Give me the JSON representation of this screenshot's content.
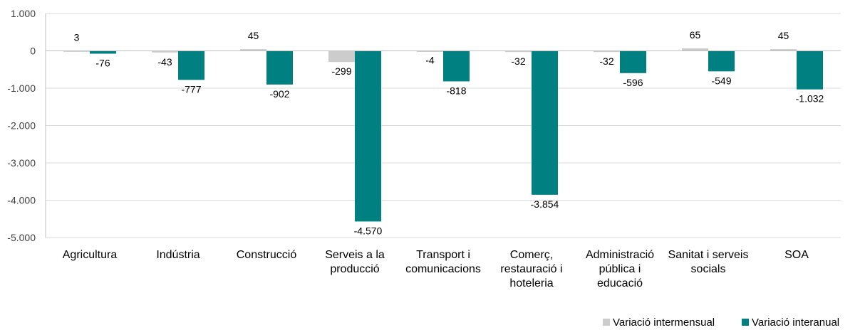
{
  "chart_data": {
    "type": "bar",
    "categories": [
      [
        "Agricultura"
      ],
      [
        "Indústria"
      ],
      [
        "Construcció"
      ],
      [
        "Serveis a la",
        "producció"
      ],
      [
        "Transport i",
        "comunicacions"
      ],
      [
        "Comerç,",
        "restauració i",
        "hoteleria"
      ],
      [
        "Administració",
        "pública i",
        "educació"
      ],
      [
        "Sanitat i serveis",
        "socials"
      ],
      [
        "SOA"
      ]
    ],
    "series": [
      {
        "name": "Variació intermensual",
        "color": "#cccccc",
        "values": [
          3,
          -43,
          45,
          -299,
          -4,
          -32,
          -32,
          65,
          45
        ],
        "labels": [
          "3",
          "-43",
          "45",
          "-299",
          "-4",
          "-32",
          "-32",
          "65",
          "45"
        ]
      },
      {
        "name": "Variació interanual",
        "color": "#008080",
        "values": [
          -76,
          -777,
          -902,
          -4570,
          -818,
          -3854,
          -596,
          -549,
          -1032
        ],
        "labels": [
          "-76",
          "-777",
          "-902",
          "-4.570",
          "-818",
          "-3.854",
          "-596",
          "-549",
          "-1.032"
        ]
      }
    ],
    "y_ticks": [
      1000,
      0,
      -1000,
      -2000,
      -3000,
      -4000,
      -5000
    ],
    "y_tick_labels": [
      "1.000",
      "0",
      "-1.000",
      "-2.000",
      "-3.000",
      "-4.000",
      "-5.000"
    ],
    "ylim": [
      -5000,
      1000
    ],
    "grid": true,
    "legend_position": "bottom-right",
    "title": "",
    "xlabel": "",
    "ylabel": ""
  }
}
